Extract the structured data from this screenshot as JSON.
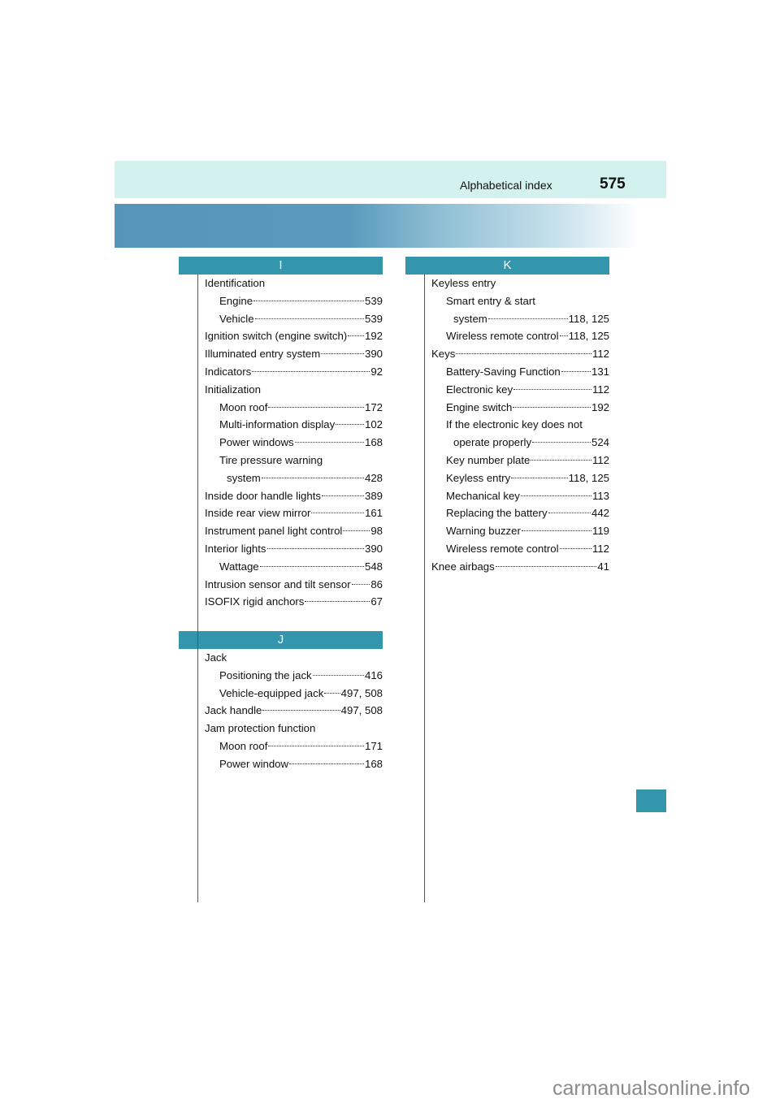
{
  "header": {
    "title": "Alphabetical index",
    "page_number": "575"
  },
  "sections": [
    {
      "letter": "I",
      "entries": [
        {
          "text": "Identification",
          "page": "",
          "level": 0
        },
        {
          "text": "Engine",
          "page": "539",
          "level": 1
        },
        {
          "text": "Vehicle",
          "page": "539",
          "level": 1
        },
        {
          "text": "Ignition switch (engine switch)",
          "page": "192",
          "level": 0
        },
        {
          "text": "Illuminated entry system",
          "page": "390",
          "level": 0
        },
        {
          "text": "Indicators",
          "page": "92",
          "level": 0
        },
        {
          "text": "Initialization",
          "page": "",
          "level": 0
        },
        {
          "text": "Moon roof",
          "page": "172",
          "level": 1
        },
        {
          "text": "Multi-information display",
          "page": "102",
          "level": 1
        },
        {
          "text": "Power windows",
          "page": "168",
          "level": 1
        },
        {
          "text": "Tire pressure warning",
          "page": "",
          "level": 1
        },
        {
          "text": "system",
          "page": "428",
          "level": 2
        },
        {
          "text": "Inside door handle lights",
          "page": "389",
          "level": 0
        },
        {
          "text": "Inside rear view mirror",
          "page": "161",
          "level": 0
        },
        {
          "text": "Instrument panel light control",
          "page": "98",
          "level": 0
        },
        {
          "text": "Interior lights",
          "page": "390",
          "level": 0
        },
        {
          "text": "Wattage",
          "page": "548",
          "level": 1
        },
        {
          "text": "Intrusion sensor and tilt sensor",
          "page": "86",
          "level": 0
        },
        {
          "text": "ISOFIX rigid anchors",
          "page": "67",
          "level": 0
        }
      ]
    },
    {
      "letter": "J",
      "entries": [
        {
          "text": "Jack",
          "page": "",
          "level": 0
        },
        {
          "text": "Positioning the jack",
          "page": "416",
          "level": 1
        },
        {
          "text": "Vehicle-equipped jack",
          "page": "497, 508",
          "level": 1
        },
        {
          "text": "Jack handle",
          "page": "497, 508",
          "level": 0
        },
        {
          "text": "Jam protection function",
          "page": "",
          "level": 0
        },
        {
          "text": "Moon roof",
          "page": "171",
          "level": 1
        },
        {
          "text": "Power window",
          "page": "168",
          "level": 1
        }
      ]
    },
    {
      "letter": "K",
      "entries": [
        {
          "text": "Keyless entry",
          "page": "",
          "level": 0
        },
        {
          "text": "Smart entry & start",
          "page": "",
          "level": 1
        },
        {
          "text": "system",
          "page": "118, 125",
          "level": 2
        },
        {
          "text": "Wireless remote control",
          "page": "118, 125",
          "level": 1
        },
        {
          "text": "Keys",
          "page": "112",
          "level": 0
        },
        {
          "text": "Battery-Saving Function",
          "page": "131",
          "level": 1
        },
        {
          "text": "Electronic key",
          "page": "112",
          "level": 1
        },
        {
          "text": "Engine switch",
          "page": "192",
          "level": 1
        },
        {
          "text": "If the electronic key does not",
          "page": "",
          "level": 1
        },
        {
          "text": "operate properly",
          "page": "524",
          "level": 2
        },
        {
          "text": "Key number plate",
          "page": "112",
          "level": 1
        },
        {
          "text": "Keyless entry",
          "page": "118, 125",
          "level": 1
        },
        {
          "text": "Mechanical key",
          "page": "113",
          "level": 1
        },
        {
          "text": "Replacing the battery",
          "page": "442",
          "level": 1
        },
        {
          "text": "Warning buzzer",
          "page": "119",
          "level": 1
        },
        {
          "text": "Wireless remote control",
          "page": "112",
          "level": 1
        },
        {
          "text": "Knee airbags",
          "page": "41",
          "level": 0
        }
      ]
    }
  ],
  "watermark": "carmanualsonline.info",
  "colors": {
    "section_header": "#3396ad",
    "header_bg": "#d3f1ee",
    "band": "#5695b8"
  }
}
